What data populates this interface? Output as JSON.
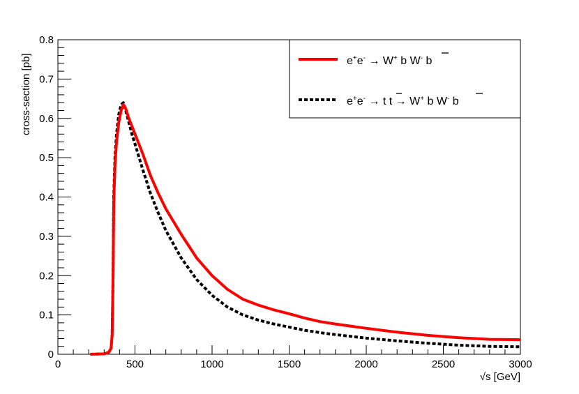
{
  "chart_data": {
    "type": "line",
    "title": "",
    "xlabel": "√s [GeV]",
    "ylabel": "cross-section [pb]",
    "xlim": [
      0,
      3000
    ],
    "ylim": [
      0,
      0.8
    ],
    "x_ticks": [
      0,
      500,
      1000,
      1500,
      2000,
      2500,
      3000
    ],
    "y_ticks": [
      0,
      0.1,
      0.2,
      0.3,
      0.4,
      0.5,
      0.6,
      0.7,
      0.8
    ],
    "grid": false,
    "legend_position": "top-right",
    "series": [
      {
        "name": "e+e- → W+ b W- b̄",
        "color": "#ff0000",
        "style": "solid",
        "x": [
          210,
          300,
          330,
          345,
          352,
          358,
          362,
          370,
          380,
          395,
          410,
          425,
          440,
          460,
          480,
          500,
          550,
          600,
          650,
          700,
          800,
          900,
          1000,
          1100,
          1200,
          1300,
          1400,
          1500,
          1600,
          1700,
          1800,
          2000,
          2200,
          2400,
          2600,
          2800,
          3000
        ],
        "y": [
          0.0,
          0.001,
          0.005,
          0.015,
          0.05,
          0.2,
          0.38,
          0.48,
          0.54,
          0.59,
          0.62,
          0.635,
          0.625,
          0.6,
          0.58,
          0.56,
          0.51,
          0.455,
          0.41,
          0.37,
          0.305,
          0.245,
          0.2,
          0.165,
          0.14,
          0.125,
          0.113,
          0.103,
          0.092,
          0.083,
          0.077,
          0.066,
          0.056,
          0.048,
          0.042,
          0.038,
          0.037
        ]
      },
      {
        "name": "e+e- → t t̄ → W+ b W- b̄",
        "color": "#000000",
        "style": "dashed",
        "x": [
          210,
          300,
          330,
          345,
          352,
          358,
          362,
          370,
          380,
          395,
          410,
          425,
          440,
          460,
          480,
          500,
          550,
          600,
          650,
          700,
          800,
          900,
          1000,
          1100,
          1200,
          1300,
          1400,
          1500,
          1600,
          1700,
          1800,
          2000,
          2200,
          2400,
          2600,
          2800,
          3000
        ],
        "y": [
          0.0,
          0.001,
          0.005,
          0.015,
          0.05,
          0.2,
          0.4,
          0.5,
          0.56,
          0.61,
          0.635,
          0.64,
          0.62,
          0.59,
          0.56,
          0.535,
          0.47,
          0.41,
          0.36,
          0.315,
          0.245,
          0.19,
          0.15,
          0.12,
          0.1,
          0.087,
          0.077,
          0.069,
          0.061,
          0.055,
          0.05,
          0.041,
          0.034,
          0.028,
          0.023,
          0.02,
          0.019
        ]
      }
    ]
  },
  "legend": {
    "entry1": {
      "e1": "e",
      "s1": "+",
      "e2": "e",
      "s2": "-",
      "arrow": " → W",
      "s3": "+",
      "mid": " b W",
      "s4": "-",
      "b": " b"
    },
    "entry2": {
      "e1": "e",
      "s1": "+",
      "e2": "e",
      "s2": "-",
      "pre": " → t ",
      "t": "t",
      "arrow": " → W",
      "s3": "+",
      "mid": " b W",
      "s4": "-",
      "b": " b"
    }
  }
}
